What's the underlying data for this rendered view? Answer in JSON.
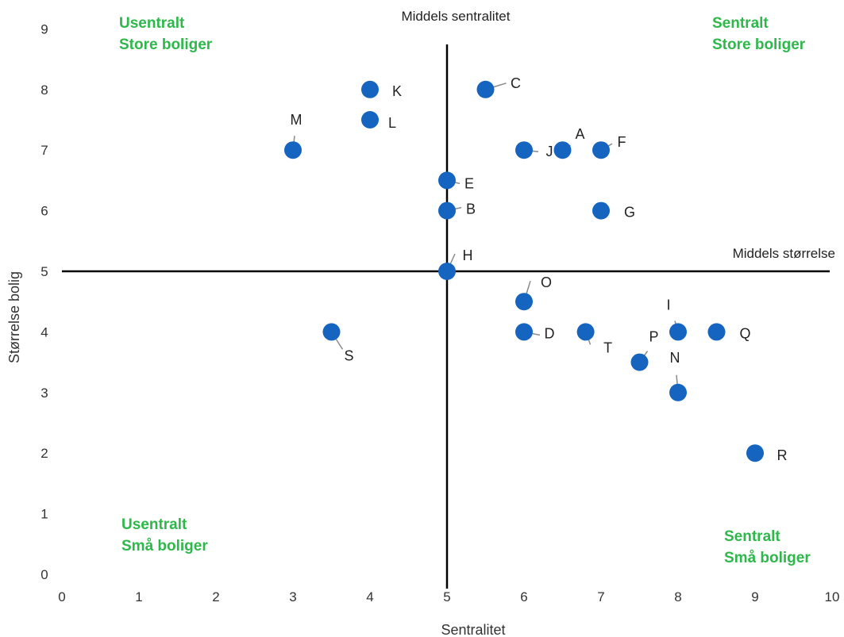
{
  "chart_data": {
    "type": "scatter",
    "xlabel": "Sentralitet",
    "ylabel": "Størrelse bolig",
    "xlim": [
      0,
      10
    ],
    "ylim": [
      0,
      9
    ],
    "x_ticks": [
      "0",
      "1",
      "2",
      "3",
      "4",
      "5",
      "6",
      "7",
      "8",
      "9",
      "10"
    ],
    "y_ticks": [
      "0",
      "1",
      "2",
      "3",
      "4",
      "5",
      "6",
      "7",
      "8",
      "9"
    ],
    "grid": false,
    "point_color": "#1565C0",
    "quadrant_color": "#2EB84B",
    "reference_lines": {
      "vertical": {
        "x": 5,
        "label": "Middels sentralitet"
      },
      "horizontal": {
        "y": 5,
        "label": "Middels størrelse"
      }
    },
    "quadrants": {
      "top_left": [
        "Usentralt",
        "Store boliger"
      ],
      "top_right": [
        "Sentralt",
        "Store boliger"
      ],
      "bottom_left": [
        "Usentralt",
        "Små boliger"
      ],
      "bottom_right": [
        "Sentralt",
        "Små boliger"
      ]
    },
    "points": [
      {
        "label": "A",
        "x": 6.5,
        "y": 7
      },
      {
        "label": "B",
        "x": 5,
        "y": 6
      },
      {
        "label": "C",
        "x": 5.5,
        "y": 8
      },
      {
        "label": "D",
        "x": 6,
        "y": 4
      },
      {
        "label": "E",
        "x": 5,
        "y": 6.5
      },
      {
        "label": "F",
        "x": 7,
        "y": 7
      },
      {
        "label": "G",
        "x": 7,
        "y": 6
      },
      {
        "label": "H",
        "x": 5,
        "y": 5
      },
      {
        "label": "I",
        "x": 8,
        "y": 4
      },
      {
        "label": "J",
        "x": 6,
        "y": 7
      },
      {
        "label": "K",
        "x": 4,
        "y": 8
      },
      {
        "label": "L",
        "x": 4,
        "y": 7.5
      },
      {
        "label": "M",
        "x": 3,
        "y": 7
      },
      {
        "label": "N",
        "x": 8,
        "y": 3
      },
      {
        "label": "O",
        "x": 6,
        "y": 4.5
      },
      {
        "label": "P",
        "x": 7.5,
        "y": 3.5
      },
      {
        "label": "Q",
        "x": 8.5,
        "y": 4
      },
      {
        "label": "R",
        "x": 9,
        "y": 2
      },
      {
        "label": "S",
        "x": 3.5,
        "y": 4
      },
      {
        "label": "T",
        "x": 6.8,
        "y": 4
      }
    ]
  }
}
